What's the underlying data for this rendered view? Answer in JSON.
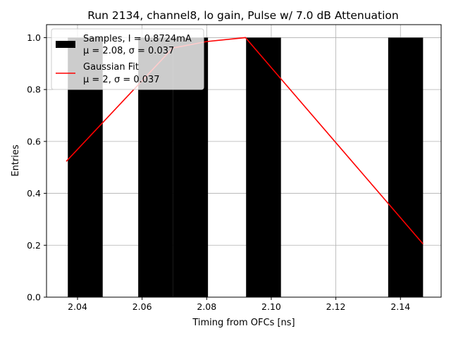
{
  "chart_data": {
    "type": "bar",
    "title": "Run 2134, channel8, lo gain, Pulse w/ 7.0 dB Attenuation",
    "xlabel": "Timing from OFCs [ns]",
    "ylabel": "Entries",
    "xlim": [
      2.0304,
      2.1526
    ],
    "ylim": [
      0,
      1.05
    ],
    "xticks": [
      "2.04",
      "2.06",
      "2.08",
      "2.10",
      "2.12",
      "2.14"
    ],
    "xtick_values": [
      2.04,
      2.06,
      2.08,
      2.1,
      2.12,
      2.14
    ],
    "yticks": [
      "0.0",
      "0.2",
      "0.4",
      "0.6",
      "0.8",
      "1.0"
    ],
    "ytick_values": [
      0.0,
      0.2,
      0.4,
      0.6,
      0.8,
      1.0
    ],
    "grid": true,
    "legend_position": "top-left",
    "series": [
      {
        "kind": "histogram",
        "color": "#000000",
        "bins": [
          {
            "x0": 2.037,
            "x1": 2.0478,
            "value": 1
          },
          {
            "x0": 2.0588,
            "x1": 2.0696,
            "value": 1
          },
          {
            "x0": 2.0696,
            "x1": 2.0804,
            "value": 1
          },
          {
            "x0": 2.0922,
            "x1": 2.103,
            "value": 1
          },
          {
            "x0": 2.1362,
            "x1": 2.147,
            "value": 1
          }
        ]
      },
      {
        "kind": "line",
        "color": "#ff0000",
        "x": [
          2.0365,
          2.0695,
          2.08,
          2.092,
          2.147
        ],
        "y": [
          0.523,
          0.96,
          0.985,
          1.0,
          0.205
        ]
      }
    ],
    "legend": [
      {
        "line1": "Samples, I = 0.8724mA",
        "line2": "μ = 2.08, σ = 0.037",
        "swatch": "rect",
        "color": "#000000"
      },
      {
        "line1": "Gaussian Fit",
        "line2": "μ = 2, σ = 0.037",
        "swatch": "line",
        "color": "#ff0000"
      }
    ]
  }
}
